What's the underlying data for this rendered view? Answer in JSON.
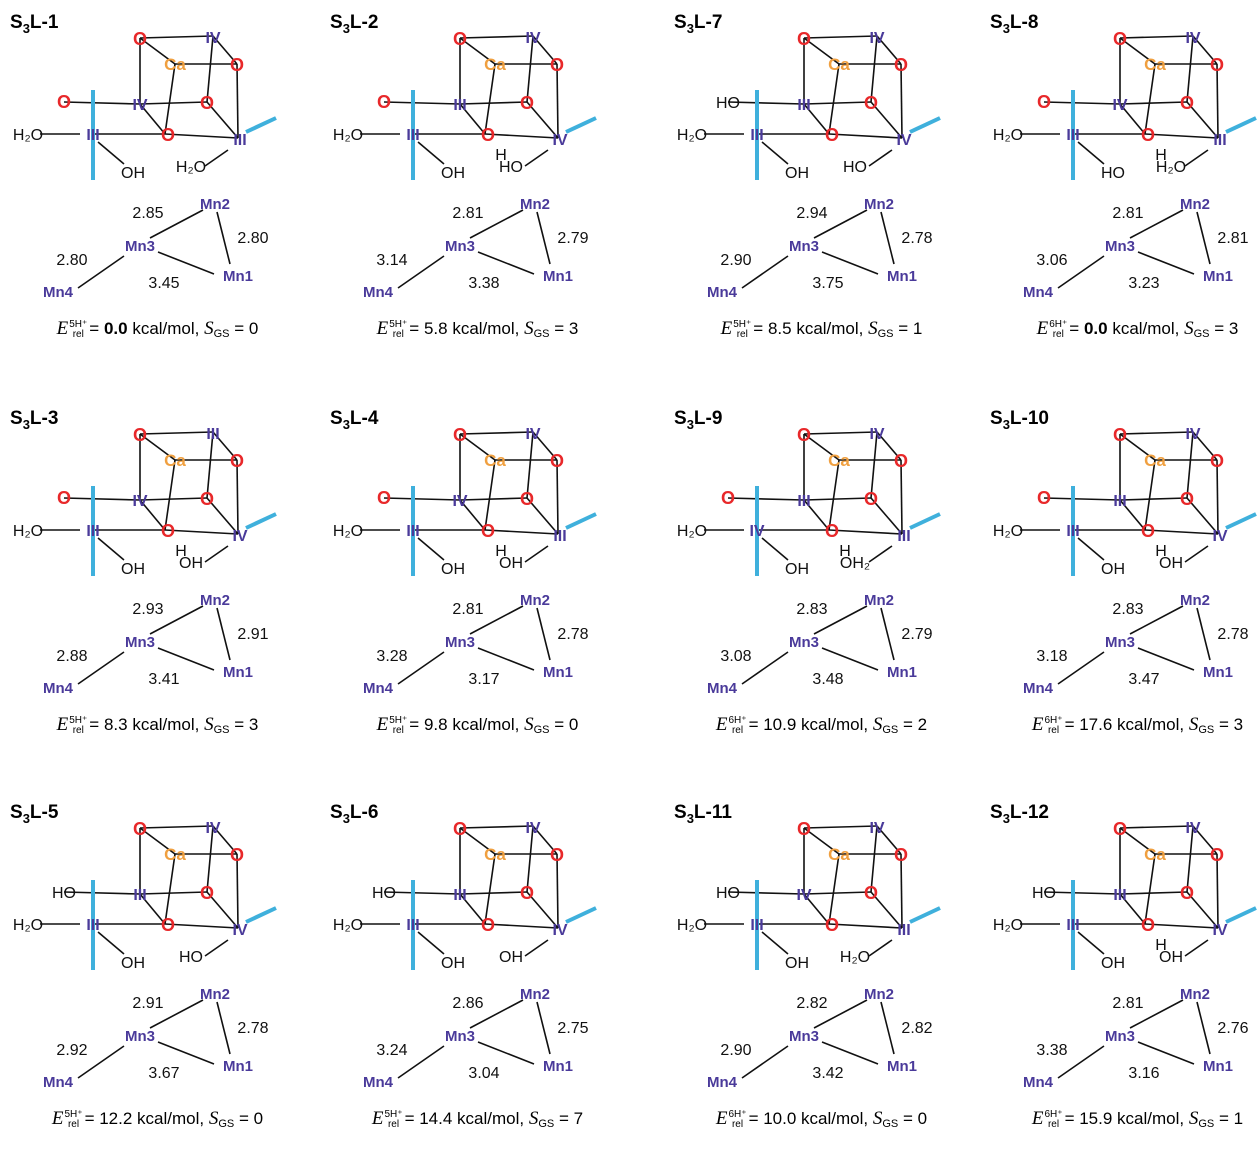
{
  "element_labels": {
    "oxygen": "O",
    "calcium": "Ca"
  },
  "mn_labels": [
    "Mn1",
    "Mn2",
    "Mn3",
    "Mn4"
  ],
  "energy_units": "kcal/mol",
  "energy_symbol": "E",
  "energy_sub": "rel",
  "spin_symbol": "S",
  "spin_sub": "GS",
  "panels": [
    {
      "id": "S3L-1",
      "title_pre": "S",
      "title_sub": "3",
      "title_post": "L-1",
      "charge": "5H⁺",
      "energy": "0.0",
      "energy_bold": true,
      "spin": "0",
      "ox": {
        "top": "IV",
        "mid": "IV",
        "left": "III",
        "right": "III"
      },
      "ligands": {
        "a": "O",
        "b": "H₂O",
        "c": "OH",
        "d": "H₂O",
        "e": ""
      },
      "dist": {
        "mn2mn3": "2.85",
        "mn1mn2": "2.80",
        "mn3mn4": "2.80",
        "mn1mn3": "3.45"
      }
    },
    {
      "id": "S3L-2",
      "title_pre": "S",
      "title_sub": "3",
      "title_post": "L-2",
      "charge": "5H⁺",
      "energy": "5.8",
      "energy_bold": false,
      "spin": "3",
      "ox": {
        "top": "IV",
        "mid": "III",
        "left": "III",
        "right": "IV"
      },
      "ligands": {
        "a": "O",
        "b": "H₂O",
        "c": "OH",
        "d": "HO",
        "e": "H"
      },
      "dist": {
        "mn2mn3": "2.81",
        "mn1mn2": "2.79",
        "mn3mn4": "3.14",
        "mn1mn3": "3.38"
      }
    },
    {
      "id": "S3L-7",
      "title_pre": "S",
      "title_sub": "3",
      "title_post": "L-7",
      "charge": "5H⁺",
      "energy": "8.5",
      "energy_bold": false,
      "spin": "1",
      "ox": {
        "top": "IV",
        "mid": "III",
        "left": "III",
        "right": "IV"
      },
      "ligands": {
        "a": "HO",
        "b": "H₂O",
        "c": "OH",
        "d": "HO",
        "e": ""
      },
      "dist": {
        "mn2mn3": "2.94",
        "mn1mn2": "2.78",
        "mn3mn4": "2.90",
        "mn1mn3": "3.75"
      }
    },
    {
      "id": "S3L-8",
      "title_pre": "S",
      "title_sub": "3",
      "title_post": "L-8",
      "charge": "6H⁺",
      "energy": "0.0",
      "energy_bold": true,
      "spin": "3",
      "ox": {
        "top": "IV",
        "mid": "IV",
        "left": "III",
        "right": "III"
      },
      "ligands": {
        "a": "O",
        "b": "H₂O",
        "c": "HO",
        "d": "H₂O",
        "e": "H"
      },
      "dist": {
        "mn2mn3": "2.81",
        "mn1mn2": "2.81",
        "mn3mn4": "3.06",
        "mn1mn3": "3.23"
      }
    },
    {
      "id": "S3L-3",
      "title_pre": "S",
      "title_sub": "3",
      "title_post": "L-3",
      "charge": "5H⁺",
      "energy": "8.3",
      "energy_bold": false,
      "spin": "3",
      "ox": {
        "top": "III",
        "mid": "IV",
        "left": "III",
        "right": "IV"
      },
      "ligands": {
        "a": "O",
        "b": "H₂O",
        "c": "OH",
        "d": "OH",
        "e": "H"
      },
      "dist": {
        "mn2mn3": "2.93",
        "mn1mn2": "2.91",
        "mn3mn4": "2.88",
        "mn1mn3": "3.41"
      }
    },
    {
      "id": "S3L-4",
      "title_pre": "S",
      "title_sub": "3",
      "title_post": "L-4",
      "charge": "5H⁺",
      "energy": "9.8",
      "energy_bold": false,
      "spin": "0",
      "ox": {
        "top": "IV",
        "mid": "IV",
        "left": "III",
        "right": "III"
      },
      "ligands": {
        "a": "O",
        "b": "H₂O",
        "c": "OH",
        "d": "OH",
        "e": "H"
      },
      "dist": {
        "mn2mn3": "2.81",
        "mn1mn2": "2.78",
        "mn3mn4": "3.28",
        "mn1mn3": "3.17"
      }
    },
    {
      "id": "S3L-9",
      "title_pre": "S",
      "title_sub": "3",
      "title_post": "L-9",
      "charge": "6H⁺",
      "energy": "10.9",
      "energy_bold": false,
      "spin": "2",
      "ox": {
        "top": "IV",
        "mid": "III",
        "left": "IV",
        "right": "III"
      },
      "ligands": {
        "a": "O",
        "b": "H₂O",
        "c": "OH",
        "d": "OH₂",
        "e": "H"
      },
      "dist": {
        "mn2mn3": "2.83",
        "mn1mn2": "2.79",
        "mn3mn4": "3.08",
        "mn1mn3": "3.48"
      }
    },
    {
      "id": "S3L-10",
      "title_pre": "S",
      "title_sub": "3",
      "title_post": "L-10",
      "charge": "6H⁺",
      "energy": "17.6",
      "energy_bold": false,
      "spin": "3",
      "ox": {
        "top": "IV",
        "mid": "III",
        "left": "III",
        "right": "IV"
      },
      "ligands": {
        "a": "O",
        "b": "H₂O",
        "c": "OH",
        "d": "OH",
        "e": "H"
      },
      "dist": {
        "mn2mn3": "2.83",
        "mn1mn2": "2.78",
        "mn3mn4": "3.18",
        "mn1mn3": "3.47"
      }
    },
    {
      "id": "S3L-5",
      "title_pre": "S",
      "title_sub": "3",
      "title_post": "L-5",
      "charge": "5H⁺",
      "energy": "12.2",
      "energy_bold": false,
      "spin": "0",
      "ox": {
        "top": "IV",
        "mid": "III",
        "left": "III",
        "right": "IV"
      },
      "ligands": {
        "a": "HO",
        "b": "H₂O",
        "c": "OH",
        "d": "HO",
        "e": ""
      },
      "dist": {
        "mn2mn3": "2.91",
        "mn1mn2": "2.78",
        "mn3mn4": "2.92",
        "mn1mn3": "3.67"
      }
    },
    {
      "id": "S3L-6",
      "title_pre": "S",
      "title_sub": "3",
      "title_post": "L-6",
      "charge": "5H⁺",
      "energy": "14.4",
      "energy_bold": false,
      "spin": "7",
      "ox": {
        "top": "IV",
        "mid": "III",
        "left": "III",
        "right": "IV"
      },
      "ligands": {
        "a": "HO",
        "b": "H₂O",
        "c": "OH",
        "d": "OH",
        "e": ""
      },
      "dist": {
        "mn2mn3": "2.86",
        "mn1mn2": "2.75",
        "mn3mn4": "3.24",
        "mn1mn3": "3.04"
      }
    },
    {
      "id": "S3L-11",
      "title_pre": "S",
      "title_sub": "3",
      "title_post": "L-11",
      "charge": "6H⁺",
      "energy": "10.0",
      "energy_bold": false,
      "spin": "0",
      "ox": {
        "top": "IV",
        "mid": "IV",
        "left": "III",
        "right": "III"
      },
      "ligands": {
        "a": "HO",
        "b": "H₂O",
        "c": "OH",
        "d": "H₂O",
        "e": ""
      },
      "dist": {
        "mn2mn3": "2.82",
        "mn1mn2": "2.82",
        "mn3mn4": "2.90",
        "mn1mn3": "3.42"
      }
    },
    {
      "id": "S3L-12",
      "title_pre": "S",
      "title_sub": "3",
      "title_post": "L-12",
      "charge": "6H⁺",
      "energy": "15.9",
      "energy_bold": false,
      "spin": "1",
      "ox": {
        "top": "IV",
        "mid": "III",
        "left": "III",
        "right": "IV"
      },
      "ligands": {
        "a": "HO",
        "b": "H₂O",
        "c": "OH",
        "d": "OH",
        "e": "H"
      },
      "dist": {
        "mn2mn3": "2.81",
        "mn1mn2": "2.76",
        "mn3mn4": "3.38",
        "mn1mn3": "3.16"
      }
    }
  ]
}
